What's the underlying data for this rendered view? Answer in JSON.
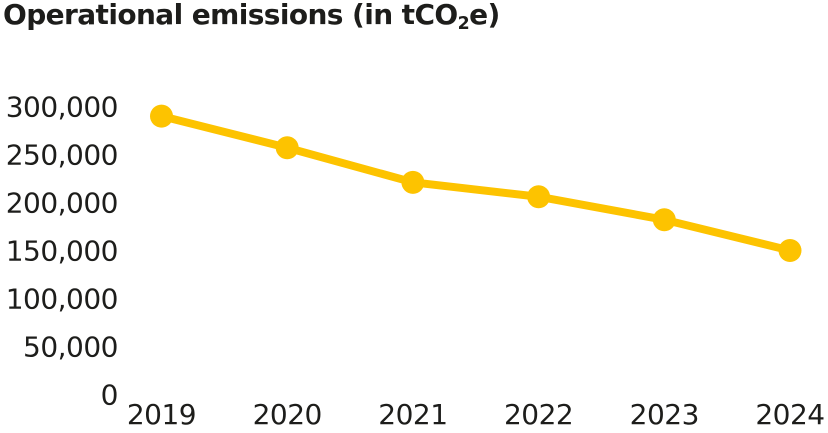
{
  "header": {
    "title_prefix": "Operational emissions (in tCO",
    "title_sub": "2",
    "title_suffix": "e)"
  },
  "colors": {
    "accent_yellow": "#FDC300",
    "text_dark": "#1D1D1B",
    "background": "#FFFFFF"
  },
  "chart_data": {
    "type": "line",
    "title": "Operational emissions (in tCO₂e)",
    "categories": [
      "2019",
      "2020",
      "2021",
      "2022",
      "2023",
      "2024"
    ],
    "series": [
      {
        "name": "Operational emissions (tCO₂e)",
        "values": [
          290000,
          257000,
          221000,
          206000,
          182000,
          150000
        ]
      }
    ],
    "xlabel": "",
    "ylabel": "",
    "ylim": [
      0,
      300000
    ],
    "ytick_step": 50000,
    "ytick_labels": [
      "0",
      "50,000",
      "100,000",
      "150,000",
      "200,000",
      "250,000",
      "300,000"
    ],
    "grid": false,
    "legend": false,
    "marker": "circle"
  }
}
